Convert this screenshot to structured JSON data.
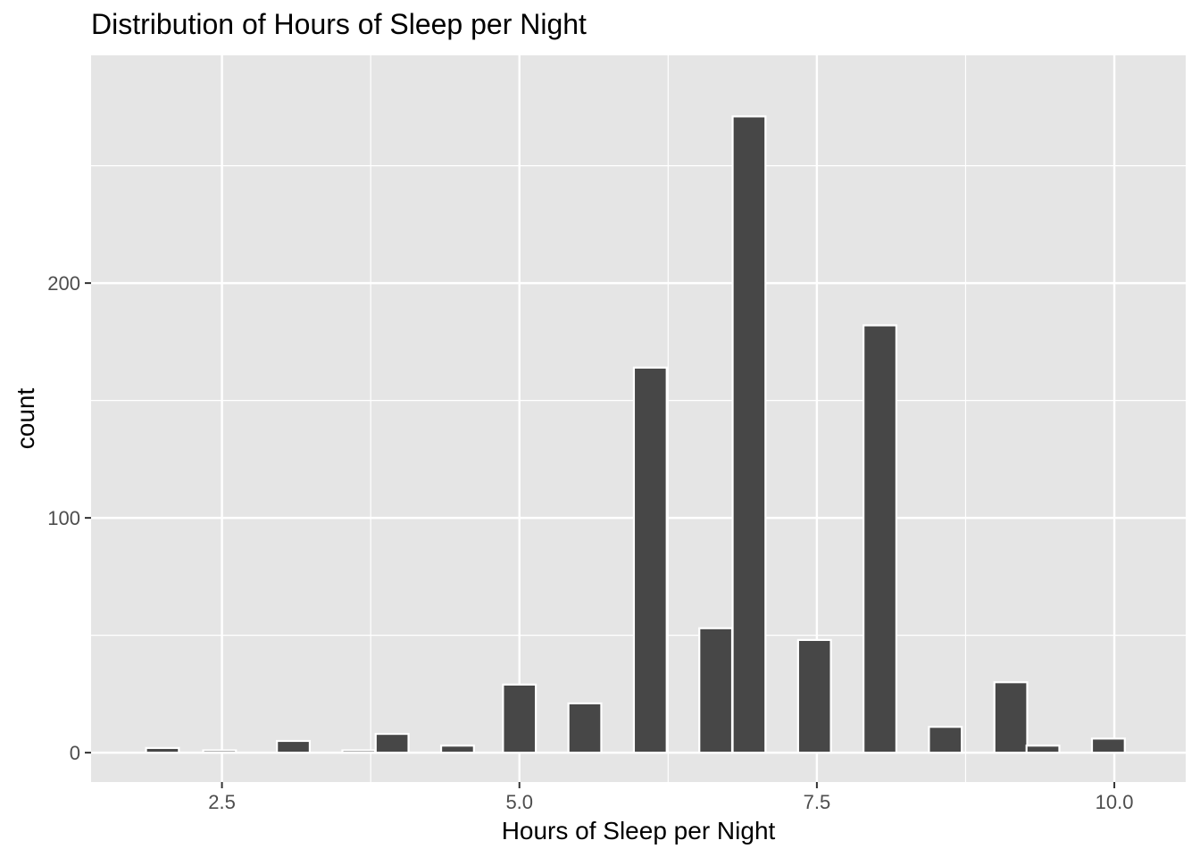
{
  "chart_data": {
    "type": "bar",
    "title": "Distribution of Hours of Sleep per Night",
    "xlabel": "Hours of Sleep per Night",
    "ylabel": "count",
    "xlim": [
      1.4,
      10.6
    ],
    "ylim": [
      -12.5,
      297
    ],
    "x_ticks": [
      {
        "value": 2.5,
        "label": "2.5"
      },
      {
        "value": 5.0,
        "label": "5.0"
      },
      {
        "value": 7.5,
        "label": "7.5"
      },
      {
        "value": 10.0,
        "label": "10.0"
      }
    ],
    "x_minor_ticks": [
      3.75,
      6.25,
      8.75
    ],
    "y_ticks": [
      {
        "value": 0,
        "label": "0"
      },
      {
        "value": 100,
        "label": "100"
      },
      {
        "value": 200,
        "label": "200"
      }
    ],
    "y_minor_ticks": [
      50,
      150,
      250
    ],
    "bin_width": 0.2759,
    "bins": [
      {
        "x": 2.0,
        "count": 2
      },
      {
        "x": 2.48,
        "count": 1
      },
      {
        "x": 3.1,
        "count": 5
      },
      {
        "x": 3.65,
        "count": 1
      },
      {
        "x": 3.93,
        "count": 8
      },
      {
        "x": 4.48,
        "count": 3
      },
      {
        "x": 5.0,
        "count": 29
      },
      {
        "x": 5.55,
        "count": 21
      },
      {
        "x": 6.1,
        "count": 164
      },
      {
        "x": 6.65,
        "count": 53
      },
      {
        "x": 6.93,
        "count": 271
      },
      {
        "x": 7.48,
        "count": 48
      },
      {
        "x": 8.03,
        "count": 182
      },
      {
        "x": 8.58,
        "count": 11
      },
      {
        "x": 9.13,
        "count": 30
      },
      {
        "x": 9.4,
        "count": 3
      },
      {
        "x": 9.95,
        "count": 6
      }
    ],
    "grid": true,
    "colors": {
      "panel": "#e5e5e5",
      "grid": "#ffffff",
      "bar_fill": "#474747",
      "bar_stroke": "#ffffff"
    }
  }
}
